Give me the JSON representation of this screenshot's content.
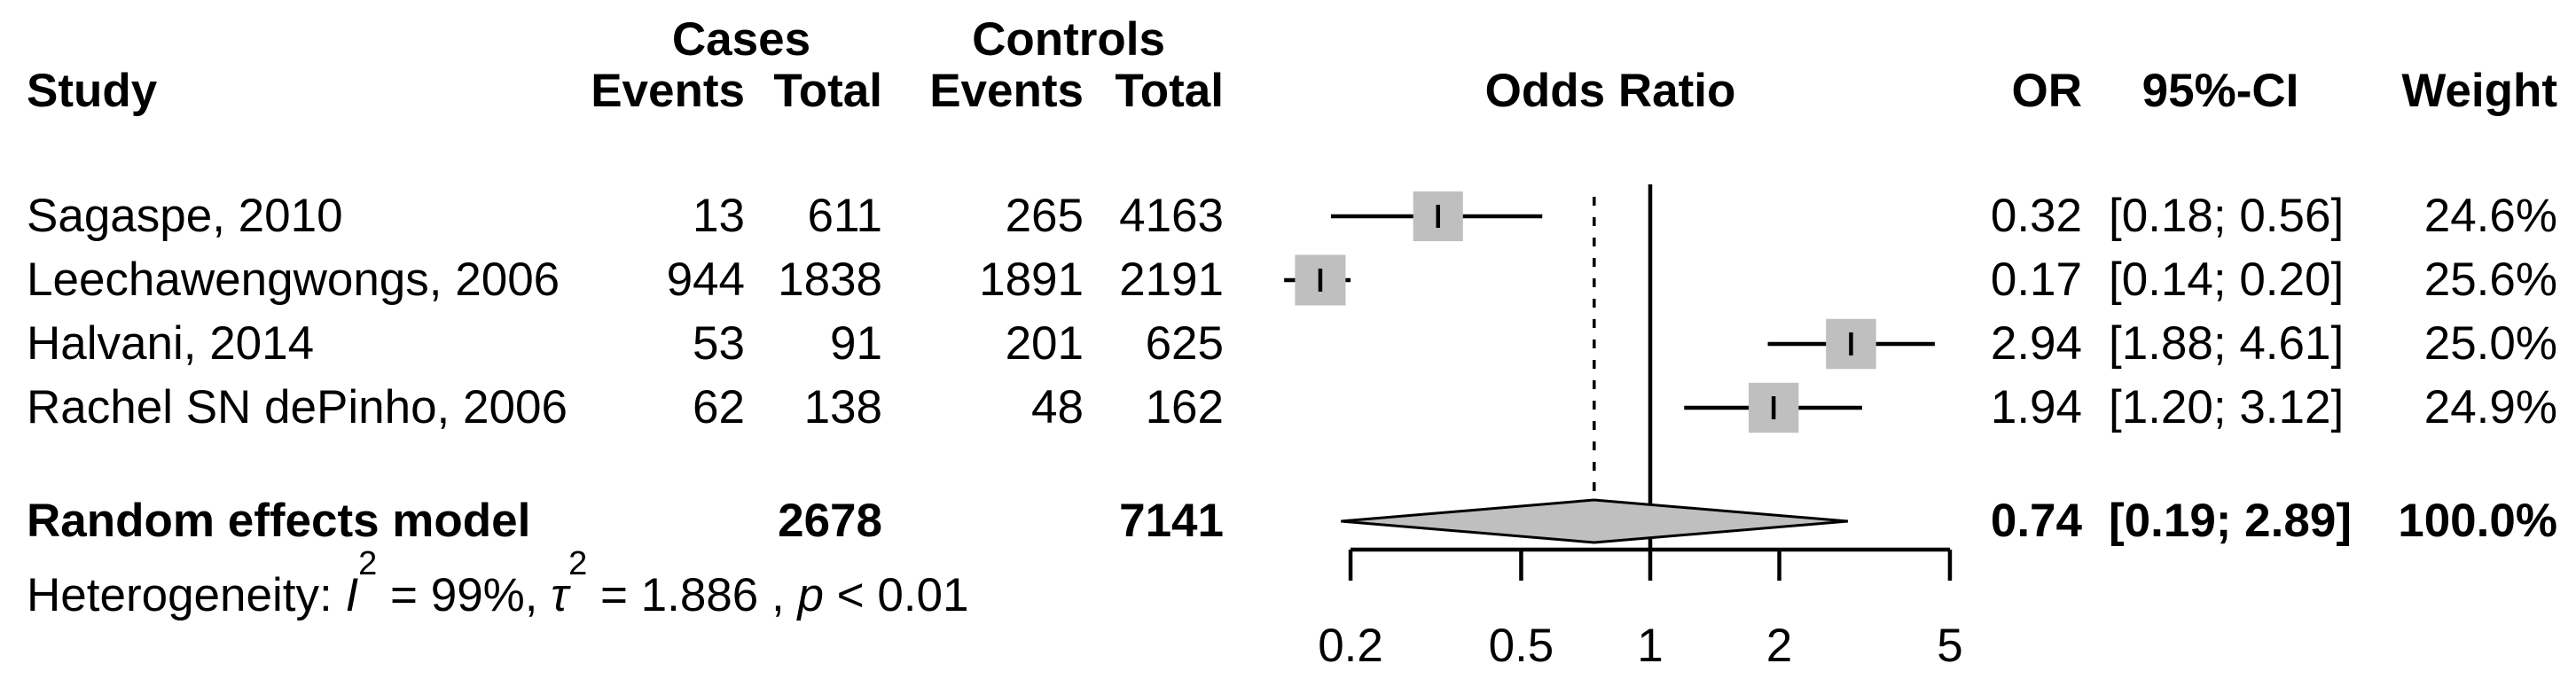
{
  "header": {
    "study": "Study",
    "cases_group": "Cases",
    "controls_group": "Controls",
    "cases_events": "Events",
    "cases_total": "Total",
    "controls_events": "Events",
    "controls_total": "Total",
    "odds_ratio": "Odds Ratio",
    "or": "OR",
    "ci": "95%-CI",
    "weight": "Weight"
  },
  "studies": [
    {
      "name": "Sagaspe, 2010",
      "cases_events": "13",
      "cases_total": "611",
      "controls_events": "265",
      "controls_total": "4163",
      "or": "0.32",
      "ci": "[0.18; 0.56]",
      "weight": "24.6%"
    },
    {
      "name": "Leechawengwongs, 2006",
      "cases_events": "944",
      "cases_total": "1838",
      "controls_events": "1891",
      "controls_total": "2191",
      "or": "0.17",
      "ci": "[0.14; 0.20]",
      "weight": "25.6%"
    },
    {
      "name": "Halvani, 2014",
      "cases_events": "53",
      "cases_total": "91",
      "controls_events": "201",
      "controls_total": "625",
      "or": "2.94",
      "ci": "[1.88; 4.61]",
      "weight": "25.0%"
    },
    {
      "name": "Rachel SN dePinho, 2006",
      "cases_events": "62",
      "cases_total": "138",
      "controls_events": "48",
      "controls_total": "162",
      "or": "1.94",
      "ci": "[1.20; 3.12]",
      "weight": "24.9%"
    }
  ],
  "summary": {
    "label": "Random effects model",
    "cases_total": "2678",
    "controls_total": "7141",
    "or": "0.74",
    "ci": "[0.19; 2.89]",
    "weight": "100.0%"
  },
  "het": {
    "prefix": "Heterogeneity: ",
    "i_sym": "I",
    "i_sup": "2",
    "seg1": " = 99%, ",
    "tau_sym": "τ",
    "tau_sup": "2",
    "seg2": " = 1.886 , ",
    "p_sym": "p",
    "seg3": " < 0.01"
  },
  "chart_data": {
    "type": "forest",
    "effect_measure": "Odds Ratio",
    "x_scale": "log",
    "x_ticks": [
      0.2,
      0.5,
      1,
      2,
      5
    ],
    "x_tick_labels": [
      "0.2",
      "0.5",
      "1",
      "2",
      "5"
    ],
    "ref_line": 1,
    "studies": [
      {
        "name": "Sagaspe, 2010",
        "cases_events": 13,
        "cases_total": 611,
        "controls_events": 265,
        "controls_total": 4163,
        "or": 0.32,
        "ci_low": 0.18,
        "ci_high": 0.56,
        "weight_pct": 24.6
      },
      {
        "name": "Leechawengwongs, 2006",
        "cases_events": 944,
        "cases_total": 1838,
        "controls_events": 1891,
        "controls_total": 2191,
        "or": 0.17,
        "ci_low": 0.14,
        "ci_high": 0.2,
        "weight_pct": 25.6
      },
      {
        "name": "Halvani, 2014",
        "cases_events": 53,
        "cases_total": 91,
        "controls_events": 201,
        "controls_total": 625,
        "or": 2.94,
        "ci_low": 1.88,
        "ci_high": 4.61,
        "weight_pct": 25.0
      },
      {
        "name": "Rachel SN dePinho, 2006",
        "cases_events": 62,
        "cases_total": 138,
        "controls_events": 48,
        "controls_total": 162,
        "or": 1.94,
        "ci_low": 1.2,
        "ci_high": 3.12,
        "weight_pct": 24.9
      }
    ],
    "summary": {
      "label": "Random effects model",
      "model": "random",
      "cases_total": 2678,
      "controls_total": 7141,
      "or": 0.74,
      "ci_low": 0.19,
      "ci_high": 2.89,
      "weight_pct": 100.0
    },
    "heterogeneity": {
      "I2": "99%",
      "tau2": 1.886,
      "p": "< 0.01"
    },
    "legend_position": "none",
    "grid": false,
    "colors": {
      "square": "#bfbfbf",
      "diamond_fill": "#bfbfbf",
      "line": "#000000",
      "background": "#ffffff"
    }
  }
}
